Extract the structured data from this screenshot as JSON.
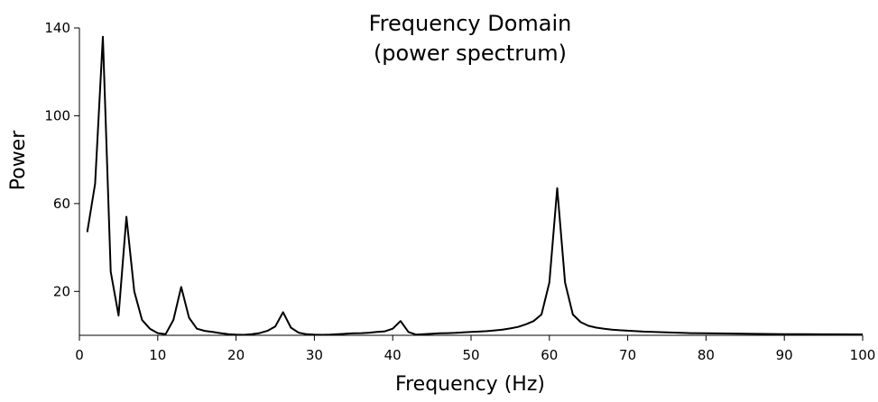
{
  "chart_data": {
    "type": "line",
    "title_line1": "Frequency Domain",
    "title_line2": "(power spectrum)",
    "xlabel": "Frequency (Hz)",
    "ylabel": "Power",
    "xlim": [
      0,
      100
    ],
    "ylim": [
      0,
      140
    ],
    "xticks": [
      0,
      10,
      20,
      30,
      40,
      50,
      60,
      70,
      80,
      90,
      100
    ],
    "yticks": [
      20,
      60,
      100,
      140
    ],
    "grid": false,
    "series": [
      {
        "color": "#000000",
        "x": [
          1,
          2,
          3,
          4,
          5,
          6,
          7,
          8,
          9,
          10,
          11,
          12,
          13,
          14,
          15,
          16,
          17,
          18,
          19,
          20,
          21,
          22,
          23,
          24,
          25,
          26,
          27,
          28,
          29,
          30,
          31,
          32,
          33,
          34,
          35,
          36,
          37,
          38,
          39,
          40,
          41,
          42,
          43,
          44,
          45,
          46,
          47,
          48,
          49,
          50,
          51,
          52,
          53,
          54,
          55,
          56,
          57,
          58,
          59,
          60,
          61,
          62,
          63,
          64,
          65,
          66,
          67,
          68,
          69,
          70,
          72,
          75,
          78,
          80,
          85,
          90,
          95,
          100
        ],
        "y": [
          47,
          69,
          136,
          29,
          9,
          54,
          20,
          7,
          3,
          1,
          0.5,
          7,
          22,
          8,
          3,
          2,
          1.5,
          1,
          0.5,
          0.3,
          0.2,
          0.5,
          1,
          2,
          4,
          10.5,
          3.5,
          1.2,
          0.5,
          0.3,
          0.2,
          0.3,
          0.5,
          0.7,
          0.9,
          1,
          1.2,
          1.5,
          1.8,
          3,
          6.5,
          1.5,
          0.3,
          0.5,
          0.7,
          0.9,
          1,
          1.1,
          1.3,
          1.5,
          1.7,
          1.9,
          2.2,
          2.6,
          3.1,
          3.8,
          5,
          6.5,
          9.5,
          24,
          67,
          24,
          9.5,
          6,
          4.3,
          3.5,
          3,
          2.6,
          2.3,
          2.1,
          1.7,
          1.3,
          1,
          0.9,
          0.7,
          0.55,
          0.45,
          0.4
        ]
      }
    ]
  }
}
